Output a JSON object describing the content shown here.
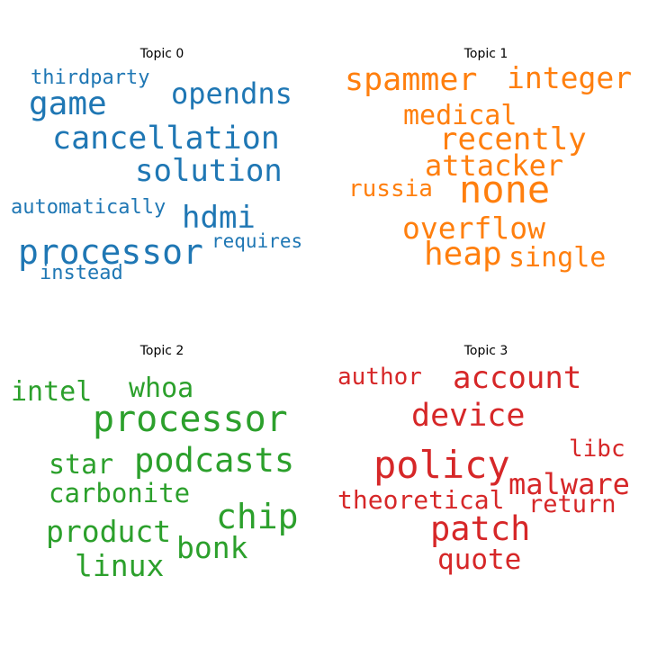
{
  "chart_data": [
    {
      "type": "wordcloud",
      "title": "Topic 0",
      "color": "#1f77b4",
      "words": [
        "thirdparty",
        "game",
        "opendns",
        "cancellation",
        "solution",
        "automatically",
        "hdmi",
        "processor",
        "requires",
        "instead"
      ]
    },
    {
      "type": "wordcloud",
      "title": "Topic 1",
      "color": "#ff7f0e",
      "words": [
        "spammer",
        "integer",
        "medical",
        "recently",
        "attacker",
        "russia",
        "none",
        "overflow",
        "heap",
        "single"
      ]
    },
    {
      "type": "wordcloud",
      "title": "Topic 2",
      "color": "#2ca02c",
      "words": [
        "intel",
        "whoa",
        "processor",
        "star",
        "podcasts",
        "carbonite",
        "chip",
        "product",
        "bonk",
        "linux"
      ]
    },
    {
      "type": "wordcloud",
      "title": "Topic 3",
      "color": "#d62728",
      "words": [
        "author",
        "account",
        "device",
        "libc",
        "policy",
        "malware",
        "theoretical",
        "return",
        "patch",
        "quote"
      ]
    }
  ]
}
